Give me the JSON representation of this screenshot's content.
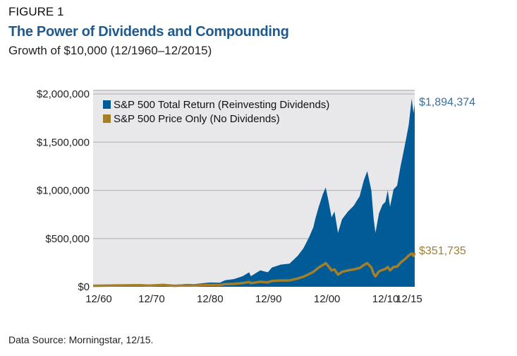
{
  "header": {
    "figure_label": "FIGURE 1",
    "title": "The Power of Dividends and Compounding",
    "subtitle": "Growth of $10,000 (12/1960–12/2015)"
  },
  "footer": {
    "source": "Data Source: Morningstar, 12/15."
  },
  "chart_data": {
    "type": "area",
    "title": "The Power of Dividends and Compounding",
    "subtitle": "Growth of $10,000 (12/1960–12/2015)",
    "xlabel": "",
    "ylabel": "",
    "xlim": [
      1960.92,
      2015.92
    ],
    "ylim": [
      0,
      2000000
    ],
    "grid": true,
    "legend": "top-left",
    "x_ticks": [
      {
        "label": "12/60",
        "x": 1960.92
      },
      {
        "label": "12/70",
        "x": 1970.92
      },
      {
        "label": "12/80",
        "x": 1980.92
      },
      {
        "label": "12/90",
        "x": 1990.92
      },
      {
        "label": "12/00",
        "x": 2000.92
      },
      {
        "label": "12/10",
        "x": 2010.92
      },
      {
        "label": "12/15",
        "x": 2015.92
      }
    ],
    "y_ticks": [
      {
        "label": "$0",
        "y": 0
      },
      {
        "label": "$500,000",
        "y": 500000
      },
      {
        "label": "$1,000,000",
        "y": 1000000
      },
      {
        "label": "$1,500,000",
        "y": 1500000
      },
      {
        "label": "$2,000,000",
        "y": 2000000
      }
    ],
    "series": [
      {
        "name": "S&P 500 Total Return (Reinvesting Dividends)",
        "color": "#015b96",
        "style": "area",
        "end_label": "$1,894,374",
        "points": [
          [
            1960.92,
            10000
          ],
          [
            1965,
            18000
          ],
          [
            1968.9,
            24000
          ],
          [
            1970.5,
            19000
          ],
          [
            1972.9,
            30000
          ],
          [
            1974.8,
            20000
          ],
          [
            1976.9,
            30000
          ],
          [
            1978.2,
            28000
          ],
          [
            1980.9,
            45000
          ],
          [
            1982.6,
            42000
          ],
          [
            1983.5,
            68000
          ],
          [
            1985,
            80000
          ],
          [
            1986.5,
            110000
          ],
          [
            1987.6,
            150000
          ],
          [
            1987.9,
            110000
          ],
          [
            1989.5,
            170000
          ],
          [
            1990.8,
            150000
          ],
          [
            1991.5,
            200000
          ],
          [
            1993,
            230000
          ],
          [
            1994.5,
            240000
          ],
          [
            1995.9,
            320000
          ],
          [
            1996.9,
            400000
          ],
          [
            1997.9,
            520000
          ],
          [
            1998.6,
            620000
          ],
          [
            1998.9,
            700000
          ],
          [
            1999.5,
            830000
          ],
          [
            2000.2,
            960000
          ],
          [
            2000.7,
            1030000
          ],
          [
            2001.2,
            880000
          ],
          [
            2001.7,
            720000
          ],
          [
            2002.2,
            780000
          ],
          [
            2002.8,
            560000
          ],
          [
            2003.5,
            700000
          ],
          [
            2004.5,
            780000
          ],
          [
            2005.5,
            840000
          ],
          [
            2006.5,
            940000
          ],
          [
            2007.2,
            1100000
          ],
          [
            2007.8,
            1200000
          ],
          [
            2008.5,
            1000000
          ],
          [
            2008.9,
            700000
          ],
          [
            2009.2,
            560000
          ],
          [
            2009.8,
            760000
          ],
          [
            2010.4,
            850000
          ],
          [
            2010.9,
            880000
          ],
          [
            2011.3,
            1000000
          ],
          [
            2011.7,
            830000
          ],
          [
            2012.3,
            1010000
          ],
          [
            2012.9,
            1050000
          ],
          [
            2013.5,
            1250000
          ],
          [
            2013.9,
            1370000
          ],
          [
            2014.5,
            1550000
          ],
          [
            2014.9,
            1680000
          ],
          [
            2015.4,
            1950000
          ],
          [
            2015.7,
            1800000
          ],
          [
            2015.92,
            1894374
          ]
        ]
      },
      {
        "name": "S&P 500 Price Only (No Dividends)",
        "color": "#a47f2a",
        "style": "line",
        "end_label": "$351,735",
        "points": [
          [
            1960.92,
            10000
          ],
          [
            1965,
            14000
          ],
          [
            1968.9,
            17000
          ],
          [
            1970.5,
            12000
          ],
          [
            1972.9,
            19000
          ],
          [
            1974.8,
            10000
          ],
          [
            1976.9,
            15000
          ],
          [
            1978.2,
            13000
          ],
          [
            1980.9,
            20000
          ],
          [
            1982.6,
            18000
          ],
          [
            1983.5,
            27000
          ],
          [
            1985,
            30000
          ],
          [
            1986.5,
            38000
          ],
          [
            1987.6,
            50000
          ],
          [
            1987.9,
            37000
          ],
          [
            1989.5,
            52000
          ],
          [
            1990.8,
            46000
          ],
          [
            1991.5,
            60000
          ],
          [
            1993,
            65000
          ],
          [
            1994.5,
            66000
          ],
          [
            1995.9,
            86000
          ],
          [
            1996.9,
            105000
          ],
          [
            1997.9,
            133000
          ],
          [
            1998.6,
            155000
          ],
          [
            1998.9,
            170000
          ],
          [
            1999.5,
            200000
          ],
          [
            2000.2,
            225000
          ],
          [
            2000.7,
            245000
          ],
          [
            2001.2,
            210000
          ],
          [
            2001.7,
            170000
          ],
          [
            2002.2,
            180000
          ],
          [
            2002.8,
            125000
          ],
          [
            2003.5,
            155000
          ],
          [
            2004.5,
            170000
          ],
          [
            2005.5,
            180000
          ],
          [
            2006.5,
            195000
          ],
          [
            2007.2,
            225000
          ],
          [
            2007.8,
            245000
          ],
          [
            2008.5,
            200000
          ],
          [
            2008.9,
            135000
          ],
          [
            2009.2,
            108000
          ],
          [
            2009.8,
            160000
          ],
          [
            2010.4,
            175000
          ],
          [
            2010.9,
            185000
          ],
          [
            2011.3,
            205000
          ],
          [
            2011.7,
            170000
          ],
          [
            2012.3,
            205000
          ],
          [
            2012.9,
            210000
          ],
          [
            2013.5,
            250000
          ],
          [
            2013.9,
            270000
          ],
          [
            2014.5,
            300000
          ],
          [
            2014.9,
            325000
          ],
          [
            2015.4,
            345000
          ],
          [
            2015.7,
            320000
          ],
          [
            2015.92,
            351735
          ]
        ]
      }
    ]
  }
}
